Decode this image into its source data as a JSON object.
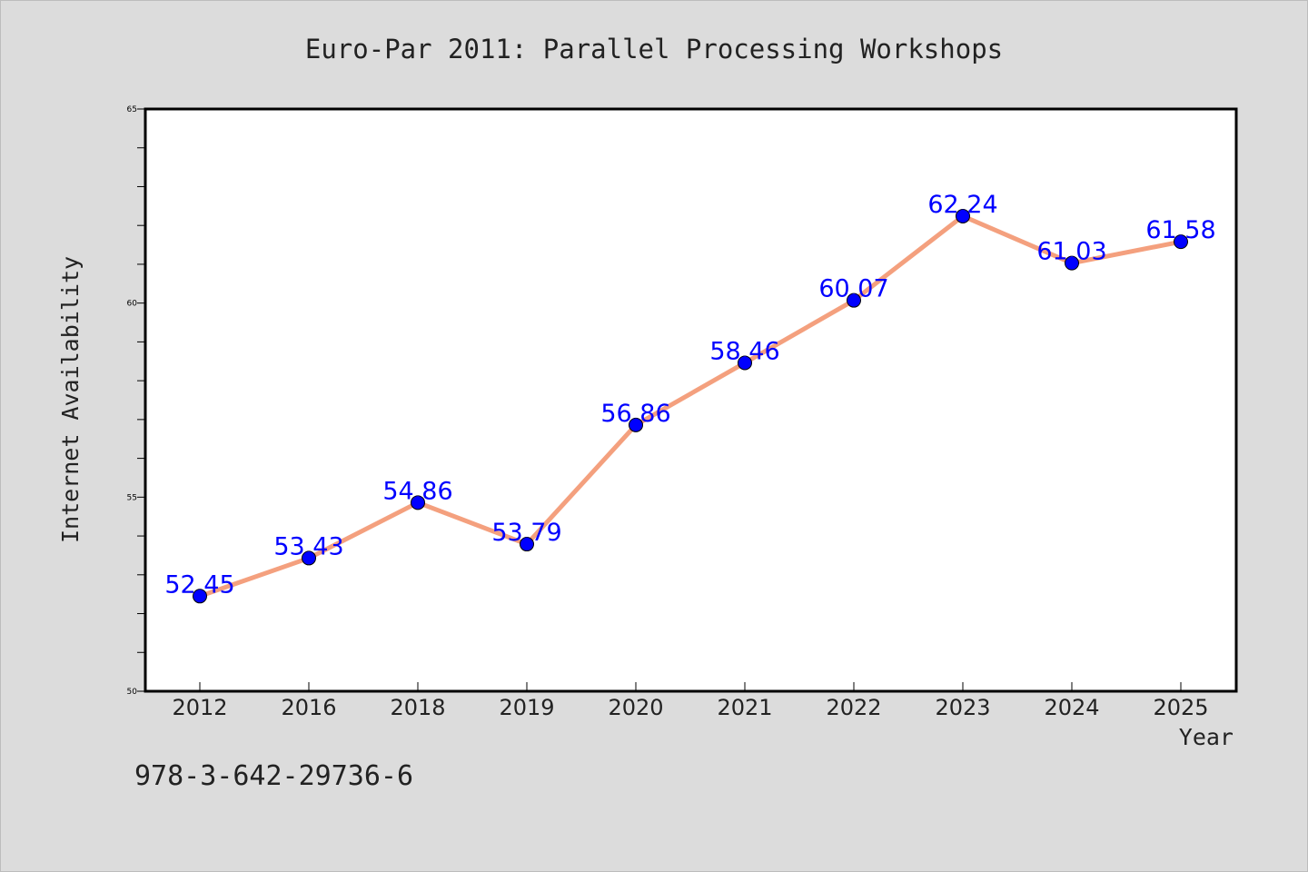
{
  "chart_data": {
    "type": "line",
    "title": "Euro-Par 2011: Parallel Processing Workshops",
    "xlabel": "Year",
    "ylabel": "Internet Availability",
    "categories": [
      "2012",
      "2016",
      "2018",
      "2019",
      "2020",
      "2021",
      "2022",
      "2023",
      "2024",
      "2025"
    ],
    "series": [
      {
        "values": [
          52.45,
          53.43,
          54.86,
          53.79,
          56.86,
          58.46,
          60.07,
          62.24,
          61.03,
          61.58
        ],
        "labels": [
          "52.45",
          "53.43",
          "54.86",
          "53.79",
          "56.86",
          "58.46",
          "60.07",
          "62.24",
          "61.03",
          "61.58"
        ],
        "line_color": "#f4a07e",
        "marker_color": "#0000ff",
        "label_color": "#0000ff"
      }
    ],
    "ylim": [
      50,
      65
    ],
    "yticks": [
      "50",
      "55",
      "60",
      "65"
    ],
    "grid": false,
    "legend": "none"
  },
  "footer_note": "978-3-642-29736-6"
}
